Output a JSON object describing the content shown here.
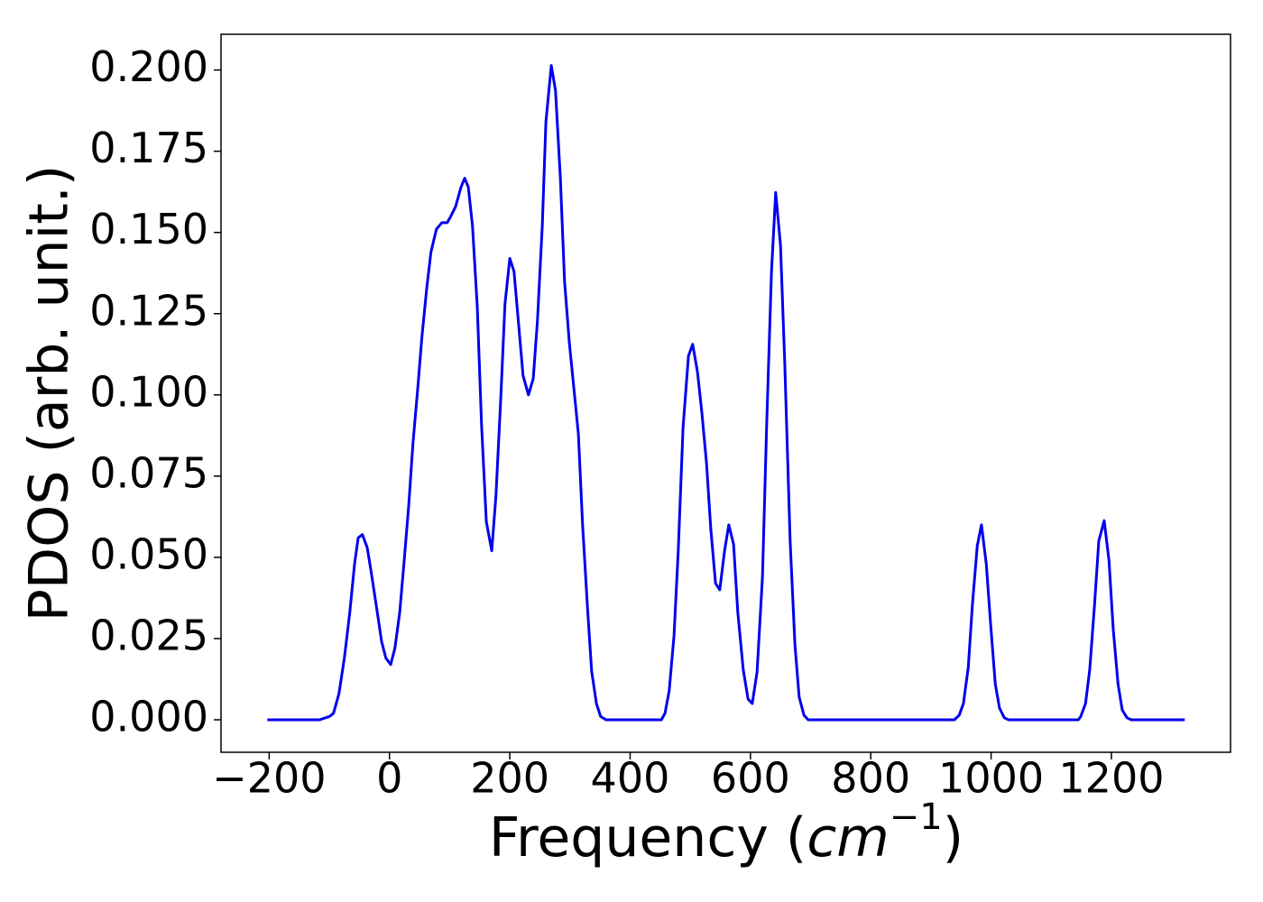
{
  "chart_data": {
    "type": "line",
    "xlabel": {
      "prefix": "Frequency (",
      "unit": "cm",
      "exponent": "−1",
      "suffix": ")"
    },
    "ylabel": "PDOS (arb. unit.)",
    "color": "#0000ee",
    "x": [
      -203,
      -116,
      -100,
      -93,
      -84,
      -75,
      -66,
      -58,
      -52,
      -45,
      -37,
      -30,
      -21,
      -13,
      -6,
      2,
      9,
      17,
      24,
      32,
      39,
      47,
      54,
      62,
      69,
      78,
      87,
      96,
      102,
      110,
      119,
      125,
      131,
      138,
      146,
      153,
      161,
      170,
      177,
      185,
      192,
      200,
      207,
      215,
      222,
      231,
      239,
      246,
      254,
      260,
      269,
      276,
      284,
      291,
      299,
      306,
      314,
      321,
      329,
      336,
      344,
      351,
      360,
      452,
      458,
      465,
      473,
      480,
      488,
      497,
      504,
      512,
      519,
      527,
      534,
      542,
      549,
      557,
      564,
      572,
      579,
      588,
      596,
      603,
      611,
      620,
      627,
      635,
      642,
      650,
      657,
      666,
      674,
      681,
      689,
      696,
      939,
      947,
      954,
      962,
      969,
      977,
      984,
      992,
      999,
      1007,
      1014,
      1022,
      1029,
      1145,
      1149,
      1157,
      1164,
      1172,
      1179,
      1188,
      1196,
      1203,
      1211,
      1218,
      1226,
      1233,
      1322
    ],
    "values": [
      0,
      0,
      0.001,
      0.002,
      0.008,
      0.019,
      0.033,
      0.048,
      0.056,
      0.057,
      0.053,
      0.045,
      0.034,
      0.024,
      0.019,
      0.017,
      0.022,
      0.033,
      0.048,
      0.066,
      0.085,
      0.102,
      0.118,
      0.133,
      0.144,
      0.151,
      0.153,
      0.153,
      0.155,
      0.158,
      0.164,
      0.1667,
      0.164,
      0.152,
      0.127,
      0.091,
      0.061,
      0.052,
      0.069,
      0.099,
      0.128,
      0.142,
      0.138,
      0.121,
      0.106,
      0.1,
      0.105,
      0.123,
      0.152,
      0.184,
      0.2014,
      0.1936,
      0.167,
      0.135,
      0.116,
      0.103,
      0.088,
      0.06,
      0.035,
      0.015,
      0.005,
      0.001,
      0,
      0,
      0.002,
      0.009,
      0.026,
      0.052,
      0.09,
      0.112,
      0.1156,
      0.107,
      0.095,
      0.079,
      0.059,
      0.042,
      0.04,
      0.052,
      0.06,
      0.054,
      0.033,
      0.0155,
      0.0064,
      0.005,
      0.0147,
      0.044,
      0.091,
      0.138,
      0.1623,
      0.146,
      0.11,
      0.055,
      0.023,
      0.007,
      0.0014,
      0,
      0,
      0.0014,
      0.005,
      0.016,
      0.0355,
      0.0535,
      0.06,
      0.048,
      0.03,
      0.011,
      0.0036,
      0.0006,
      0,
      0,
      0.001,
      0.005,
      0.0155,
      0.0355,
      0.055,
      0.0613,
      0.049,
      0.028,
      0.011,
      0.003,
      0.0006,
      0,
      0
    ],
    "xlim": [
      -280,
      1398
    ],
    "ylim": [
      -0.01,
      0.211
    ],
    "xticks": [
      {
        "value": -200,
        "label": "−200"
      },
      0,
      200,
      400,
      600,
      800,
      1000,
      1200
    ],
    "yticks": [
      {
        "value": 0,
        "label": "0.000"
      },
      {
        "value": 0.025,
        "label": "0.025"
      },
      {
        "value": 0.05,
        "label": "0.050"
      },
      {
        "value": 0.075,
        "label": "0.075"
      },
      {
        "value": 0.1,
        "label": "0.100"
      },
      {
        "value": 0.125,
        "label": "0.125"
      },
      {
        "value": 0.15,
        "label": "0.150"
      },
      {
        "value": 0.175,
        "label": "0.175"
      },
      {
        "value": 0.2,
        "label": "0.200"
      }
    ],
    "grid": false
  }
}
